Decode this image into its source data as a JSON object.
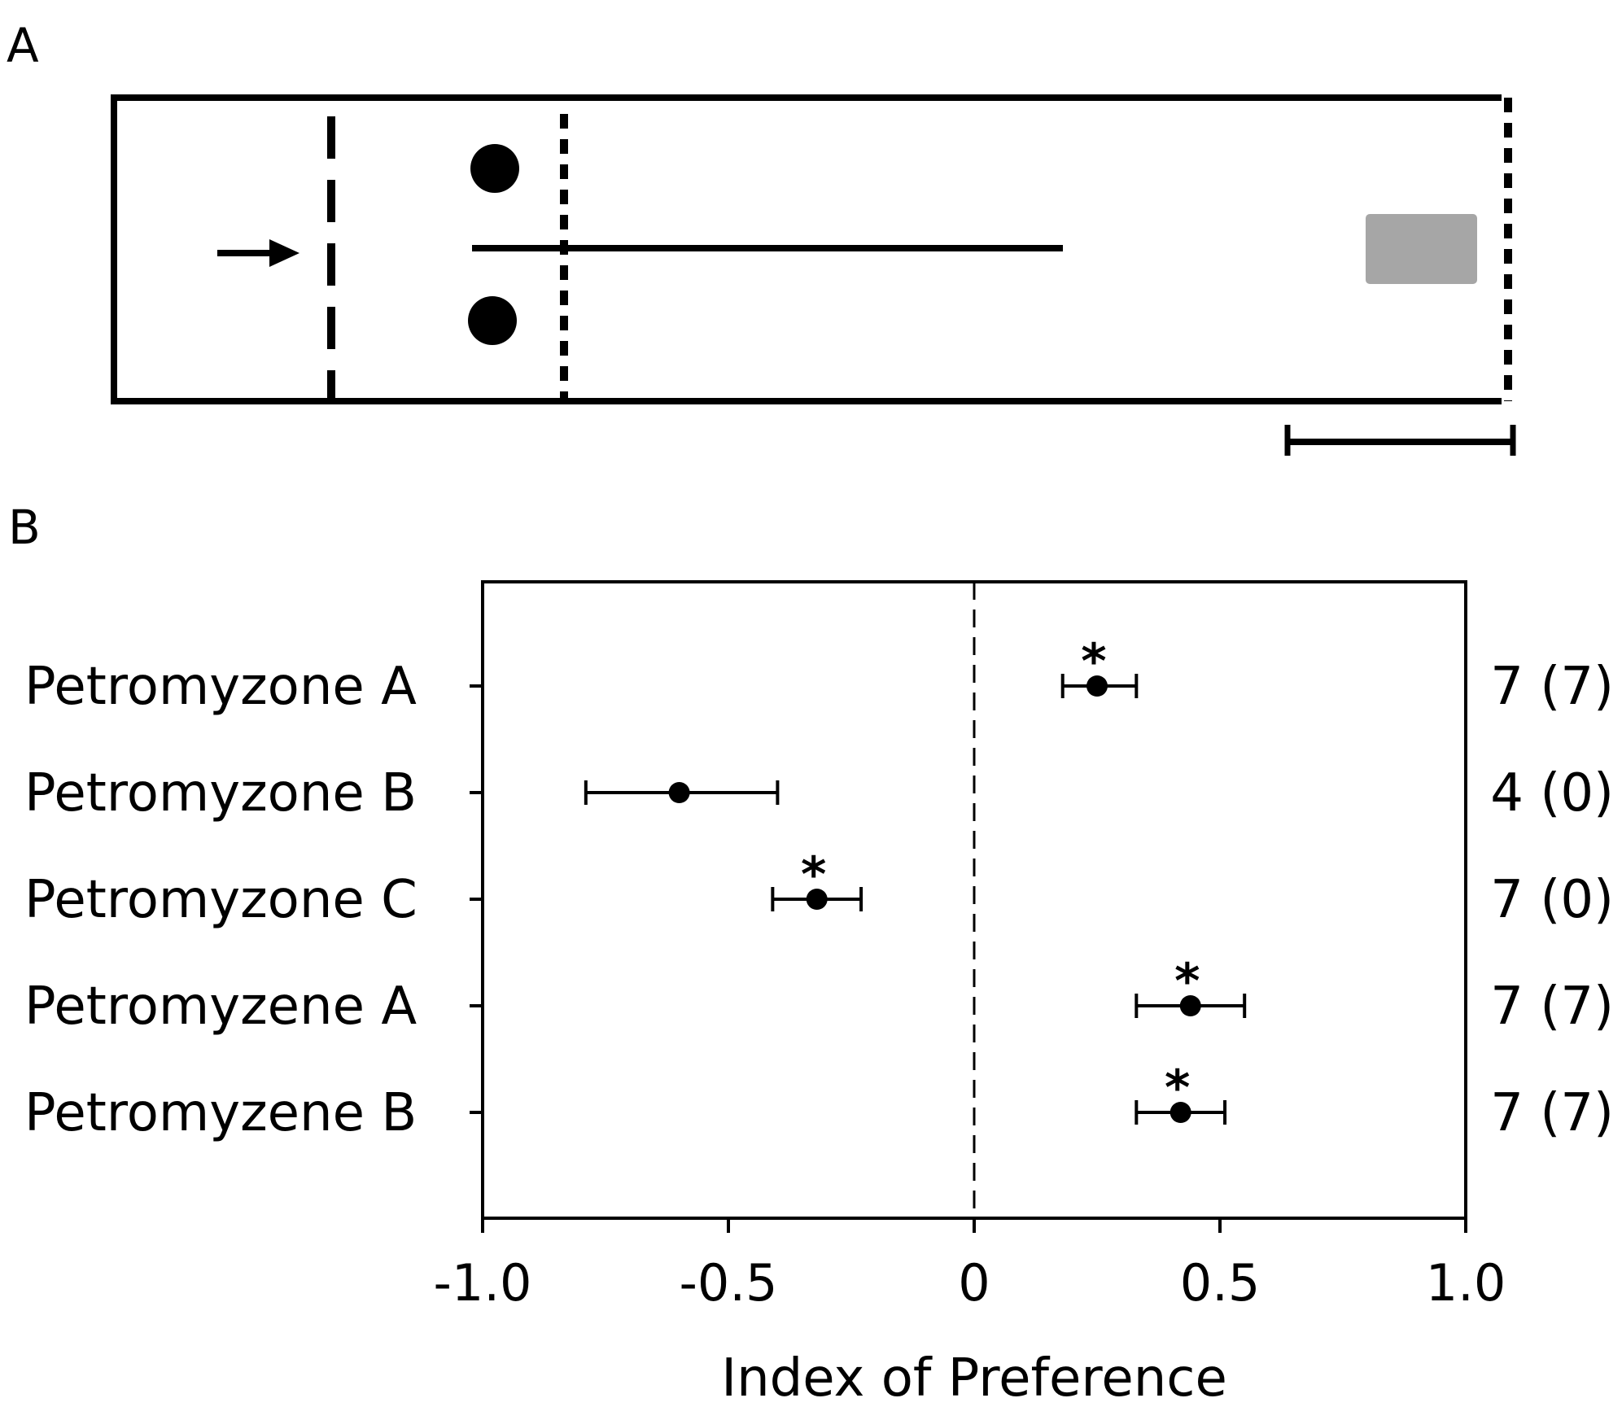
{
  "panel_a": {
    "label": "A"
  },
  "panel_b": {
    "label": "B"
  },
  "chart_data": {
    "type": "scatter",
    "title": "",
    "xlabel": "Index of Preference",
    "ylabel": "",
    "xlim": [
      -1.0,
      1.0
    ],
    "x_ticks": [
      -1.0,
      -0.5,
      0,
      0.5,
      1.0
    ],
    "x_tick_labels": [
      "-1.0",
      "-0.5",
      "0",
      "0.5",
      "1.0"
    ],
    "reference_line": 0,
    "grid": false,
    "legend": "none",
    "series": [
      {
        "points": [
          {
            "category": "Petromyzone A",
            "value": 0.25,
            "err_low": 0.18,
            "err_high": 0.33,
            "significant": true,
            "n_label": "7 (7)"
          },
          {
            "category": "Petromyzone B",
            "value": -0.6,
            "err_low": -0.79,
            "err_high": -0.4,
            "significant": false,
            "n_label": "4 (0)"
          },
          {
            "category": "Petromyzone C",
            "value": -0.32,
            "err_low": -0.41,
            "err_high": -0.23,
            "significant": true,
            "n_label": "7 (0)"
          },
          {
            "category": "Petromyzene A",
            "value": 0.44,
            "err_low": 0.33,
            "err_high": 0.55,
            "significant": true,
            "n_label": "7 (7)"
          },
          {
            "category": "Petromyzene B",
            "value": 0.42,
            "err_low": 0.33,
            "err_high": 0.51,
            "significant": true,
            "n_label": "7 (7)"
          }
        ]
      }
    ],
    "significance_marker": "*"
  }
}
